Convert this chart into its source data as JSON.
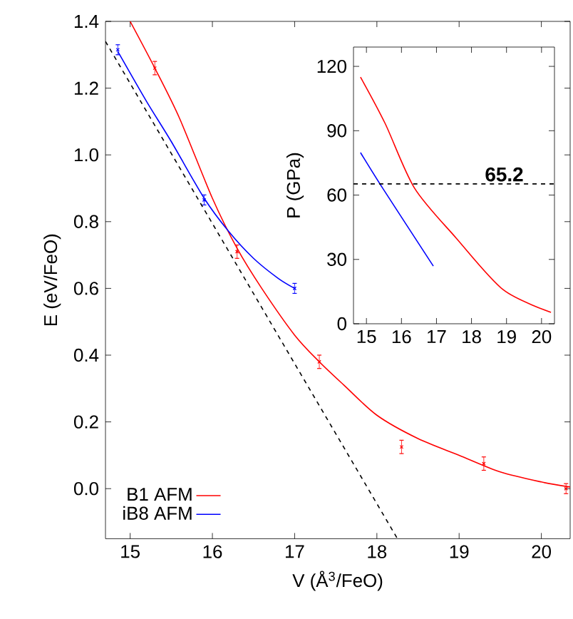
{
  "chart_data": [
    {
      "type": "line",
      "xlabel": "V (Å$^{3}$/FeO)",
      "ylabel": "E (eV/FeO)",
      "xlim": [
        14.7,
        20.35
      ],
      "ylim": [
        -0.15,
        1.4
      ],
      "xticks": [
        15,
        16,
        17,
        18,
        19,
        20
      ],
      "yticks": [
        {
          "value": 0,
          "label": "0.0"
        },
        {
          "value": 0.2,
          "label": "0.2"
        },
        {
          "value": 0.4,
          "label": "0.4"
        },
        {
          "value": 0.6,
          "label": "0.6"
        },
        {
          "value": 0.8,
          "label": "0.8"
        },
        {
          "value": 1.0,
          "label": "1.0"
        },
        {
          "value": 1.2,
          "label": "1.2"
        },
        {
          "value": 1.4,
          "label": "1.4"
        }
      ],
      "legend": "bottom left",
      "grid": false,
      "series": [
        {
          "name": "B1 AFM",
          "color": "#ff0000",
          "x": [
            15.0,
            15.3,
            15.6,
            16.0,
            16.3,
            16.6,
            17.0,
            17.3,
            17.6,
            18.0,
            18.5,
            19.0,
            19.5,
            20.0,
            20.35
          ],
          "values": [
            1.4,
            1.26,
            1.11,
            0.87,
            0.72,
            0.6,
            0.46,
            0.38,
            0.31,
            0.22,
            0.15,
            0.1,
            0.05,
            0.02,
            0.005
          ]
        },
        {
          "name": "iB8 AFM",
          "color": "#0000ff",
          "x": [
            14.85,
            15.2,
            15.5,
            15.9,
            16.2,
            16.5,
            16.8,
            17.0
          ],
          "values": [
            1.31,
            1.16,
            1.04,
            0.87,
            0.77,
            0.69,
            0.63,
            0.6
          ]
        },
        {
          "color": "#ff0000",
          "type": "scatter",
          "marker": "cross",
          "x": [
            15.3,
            16.3,
            17.3,
            18.3,
            19.3,
            20.3
          ],
          "values": [
            1.26,
            0.71,
            0.38,
            0.125,
            0.075,
            0.0
          ],
          "errors": [
            0.02,
            0.02,
            0.02,
            0.02,
            0.02,
            0.015
          ]
        },
        {
          "color": "#0000ff",
          "type": "scatter",
          "marker": "cross",
          "x": [
            14.85,
            15.9,
            17.0
          ],
          "values": [
            1.315,
            0.865,
            0.6
          ],
          "errors": [
            0.015,
            0.015,
            0.015
          ]
        },
        {
          "color": "#000000",
          "line_style": "dashed",
          "x": [
            14.7,
            18.25
          ],
          "values": [
            1.34,
            -0.15
          ]
        }
      ]
    },
    {
      "type": "line",
      "ylabel": "P (GPa)",
      "xlim": [
        14.63,
        20.37
      ],
      "ylim": [
        0,
        129
      ],
      "xticks": [
        15,
        16,
        17,
        18,
        19,
        20
      ],
      "yticks": [
        0,
        30,
        60,
        90,
        120
      ],
      "grid": false,
      "ref_lines": [
        {
          "axis": "y",
          "value": 65.2,
          "label": "65.2",
          "color": "#000000",
          "line_style": "dashed"
        }
      ],
      "series": [
        {
          "color": "#ff0000",
          "x": [
            14.83,
            15.53,
            16.37,
            17.56,
            18.91,
            20.27
          ],
          "values": [
            115,
            93.5,
            63.3,
            40,
            15.8,
            5.3
          ]
        },
        {
          "color": "#0000ff",
          "x": [
            14.83,
            15.46,
            16.91
          ],
          "values": [
            79.8,
            63.3,
            26.9
          ]
        }
      ]
    }
  ]
}
